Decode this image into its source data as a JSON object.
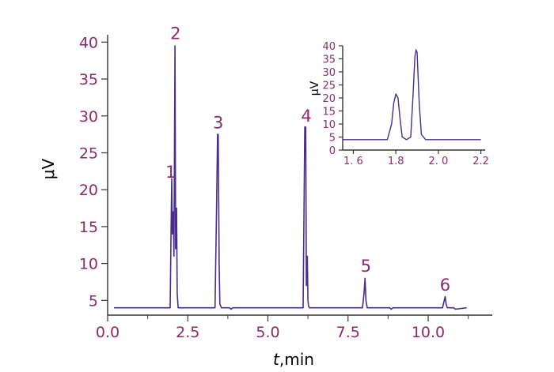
{
  "colors": {
    "text": "#8c2a6e",
    "line": "#4a2c8c",
    "axis": "#333333"
  },
  "chart_data": [
    {
      "type": "line",
      "title": "",
      "xlabel_italic": "t",
      "xlabel_rest": ",min",
      "ylabel": "μV",
      "xlim": [
        0,
        12.0
      ],
      "ylim": [
        3,
        41
      ],
      "x_ticks": [
        0.0,
        2.5,
        5.0,
        7.5,
        10.0
      ],
      "x_tick_labels": [
        "0.0",
        "2.5",
        "5.0",
        "7.5",
        "10.0"
      ],
      "y_ticks": [
        5,
        10,
        15,
        20,
        25,
        30,
        35,
        40
      ],
      "y_tick_labels": [
        "5",
        "10",
        "15",
        "20",
        "25",
        "30",
        "35",
        "40"
      ],
      "grid": false,
      "series": [
        {
          "x": [
            0.2,
            1.5,
            1.95,
            1.98,
            2.0,
            2.02,
            2.05,
            2.07,
            2.1,
            2.12,
            2.15,
            2.17,
            2.2,
            2.25,
            2.5,
            3.35,
            3.4,
            3.43,
            3.45,
            3.48,
            3.5,
            3.55,
            3.6,
            3.8,
            3.85,
            3.9,
            5.0,
            6.1,
            6.15,
            6.18,
            6.2,
            6.23,
            6.25,
            6.27,
            6.3,
            6.4,
            7.0,
            7.95,
            8.0,
            8.03,
            8.06,
            8.1,
            8.2,
            8.8,
            8.85,
            8.9,
            10.0,
            10.45,
            10.5,
            10.53,
            10.56,
            10.6,
            10.65,
            10.8,
            10.85,
            11.2
          ],
          "y": [
            4,
            4,
            4,
            15,
            21.5,
            14,
            17,
            11,
            39.5,
            12,
            17.5,
            6,
            4,
            4,
            4,
            4,
            18,
            27.5,
            27.5,
            10,
            4.5,
            4,
            4,
            4,
            3.8,
            4,
            4,
            4,
            28.5,
            28.5,
            7,
            11,
            5,
            4.2,
            4,
            4,
            4,
            4,
            6,
            8,
            5,
            4,
            4,
            4,
            3.8,
            4,
            4,
            4,
            5,
            5.5,
            4.5,
            4,
            4,
            4,
            3.8,
            4
          ]
        }
      ],
      "annotations": [
        {
          "text": "1",
          "x": 1.97,
          "y": 21.6
        },
        {
          "text": "2",
          "x": 2.12,
          "y": 40.4
        },
        {
          "text": "3",
          "x": 3.45,
          "y": 28.3
        },
        {
          "text": "4",
          "x": 6.2,
          "y": 29.2
        },
        {
          "text": "5",
          "x": 8.06,
          "y": 8.9
        },
        {
          "text": "6",
          "x": 10.53,
          "y": 6.3
        }
      ]
    },
    {
      "type": "line",
      "title": "",
      "ylabel": "μV",
      "xlim": [
        1.55,
        2.22
      ],
      "ylim": [
        0,
        40
      ],
      "x_ticks": [
        1.6,
        1.8,
        2.0,
        2.2
      ],
      "x_tick_labels": [
        "1. 6",
        "1.8",
        "2. 0",
        "2.2"
      ],
      "y_ticks": [
        0,
        5,
        10,
        15,
        20,
        25,
        30,
        35,
        40
      ],
      "y_tick_labels": [
        "0",
        "5",
        "10",
        "15",
        "20",
        "25",
        "30",
        "35",
        "40"
      ],
      "grid": false,
      "series": [
        {
          "x": [
            1.55,
            1.76,
            1.78,
            1.79,
            1.8,
            1.81,
            1.82,
            1.83,
            1.85,
            1.87,
            1.88,
            1.89,
            1.895,
            1.9,
            1.91,
            1.92,
            1.94,
            2.2
          ],
          "y": [
            4,
            4,
            10,
            18,
            21.5,
            20,
            12,
            5,
            4,
            5,
            20,
            36,
            38.5,
            37.5,
            18,
            6,
            4,
            4
          ]
        }
      ]
    }
  ]
}
